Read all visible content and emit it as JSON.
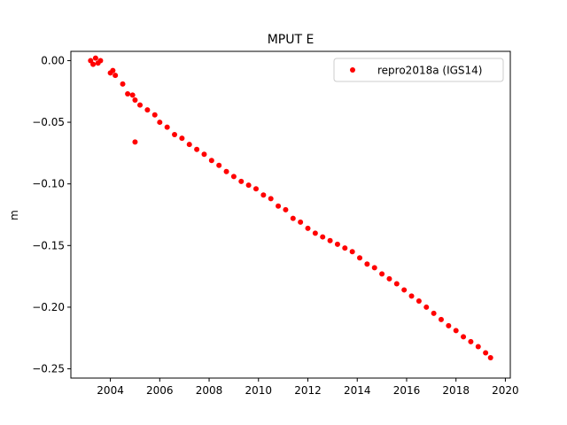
{
  "chart_data": {
    "type": "scatter",
    "title": "MPUT E",
    "xlabel": "",
    "ylabel": "m",
    "xlim": [
      2002.4,
      2020.2
    ],
    "ylim": [
      -0.2575,
      0.0075
    ],
    "x_ticks": [
      2004,
      2006,
      2008,
      2010,
      2012,
      2014,
      2016,
      2018,
      2020
    ],
    "y_ticks": [
      0.0,
      -0.05,
      -0.1,
      -0.15,
      -0.2,
      -0.25
    ],
    "y_tick_labels": [
      "0.00",
      "−0.05",
      "−0.10",
      "−0.15",
      "−0.20",
      "−0.25"
    ],
    "grid": false,
    "legend_position": "top-right",
    "series": [
      {
        "name": "repro2018a (IGS14)",
        "color": "#ff0000",
        "marker": "dot",
        "x": [
          2003.2,
          2003.3,
          2003.4,
          2003.5,
          2003.6,
          2004.0,
          2004.1,
          2004.2,
          2004.5,
          2004.7,
          2004.9,
          2005.0,
          2005.2,
          2005.5,
          2005.8,
          2006.0,
          2006.3,
          2006.6,
          2006.9,
          2007.2,
          2007.5,
          2007.8,
          2008.1,
          2008.4,
          2008.7,
          2009.0,
          2009.3,
          2009.6,
          2009.9,
          2010.2,
          2010.5,
          2010.8,
          2011.1,
          2011.4,
          2011.7,
          2012.0,
          2012.3,
          2012.6,
          2012.9,
          2013.2,
          2013.5,
          2013.8,
          2014.1,
          2014.4,
          2014.7,
          2015.0,
          2015.3,
          2015.6,
          2015.9,
          2016.2,
          2016.5,
          2016.8,
          2017.1,
          2017.4,
          2017.7,
          2018.0,
          2018.3,
          2018.6,
          2018.9,
          2019.2,
          2019.4
        ],
        "y": [
          0.0,
          -0.003,
          0.002,
          -0.002,
          0.0,
          -0.01,
          -0.008,
          -0.012,
          -0.019,
          -0.027,
          -0.028,
          -0.032,
          -0.036,
          -0.04,
          -0.044,
          -0.05,
          -0.054,
          -0.06,
          -0.063,
          -0.068,
          -0.072,
          -0.076,
          -0.081,
          -0.085,
          -0.09,
          -0.094,
          -0.098,
          -0.101,
          -0.104,
          -0.109,
          -0.112,
          -0.118,
          -0.121,
          -0.128,
          -0.131,
          -0.136,
          -0.14,
          -0.143,
          -0.146,
          -0.149,
          -0.152,
          -0.155,
          -0.16,
          -0.165,
          -0.168,
          -0.173,
          -0.177,
          -0.181,
          -0.186,
          -0.191,
          -0.195,
          -0.2,
          -0.205,
          -0.21,
          -0.215,
          -0.219,
          -0.224,
          -0.228,
          -0.232,
          -0.237,
          -0.241
        ]
      }
    ],
    "outliers": {
      "x": [
        2005.0
      ],
      "y": [
        -0.066
      ]
    }
  }
}
